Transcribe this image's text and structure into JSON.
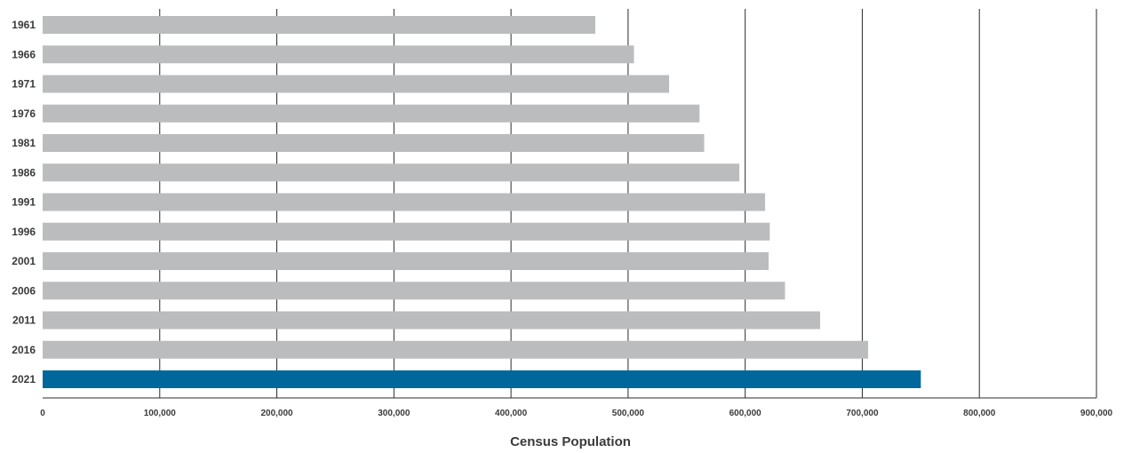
{
  "chart_data": {
    "type": "bar",
    "orientation": "horizontal",
    "categories": [
      "1961",
      "1966",
      "1971",
      "1976",
      "1981",
      "1986",
      "1991",
      "1996",
      "2001",
      "2006",
      "2011",
      "2016",
      "2021"
    ],
    "values": [
      472000,
      505000,
      535000,
      561000,
      565000,
      595000,
      617000,
      621000,
      620000,
      634000,
      664000,
      705000,
      750000
    ],
    "highlight_category": "2021",
    "xlabel": "Census Population",
    "ylabel": "",
    "xlim": [
      0,
      900000
    ],
    "xticks": [
      0,
      100000,
      200000,
      300000,
      400000,
      500000,
      600000,
      700000,
      800000,
      900000
    ],
    "xtick_labels": [
      "0",
      "100,000",
      "200,000",
      "300,000",
      "400,000",
      "500,000",
      "600,000",
      "700,000",
      "800,000",
      "900,000"
    ],
    "grid": "vertical",
    "colors": {
      "bar": "#bbbcbe",
      "highlight": "#00679c",
      "grid": "#2b2b2b",
      "text": "#3a3a3a"
    }
  }
}
